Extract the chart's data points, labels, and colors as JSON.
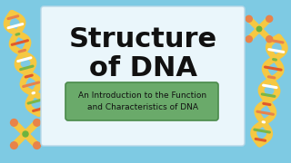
{
  "bg_color": "#7ecae3",
  "card_color": "#eaf6fb",
  "card_border_color": "#b8d8e8",
  "title_line1": "Structure",
  "title_line2": "of DNA",
  "title_color": "#111111",
  "subtitle_box_color": "#6aaa6a",
  "subtitle_box_border": "#4a8a4a",
  "subtitle_text": "An Introduction to the Function\nand Characteristics of DNA",
  "subtitle_text_color": "#111111",
  "title_fontsize": 22,
  "subtitle_fontsize": 6.5,
  "dna_yellow": "#f5c842",
  "dna_red": "#e05a2b",
  "dna_green": "#7ab648",
  "dna_white": "#ffffff",
  "dna_orange": "#e8834a",
  "chr_green": "#6db33f"
}
